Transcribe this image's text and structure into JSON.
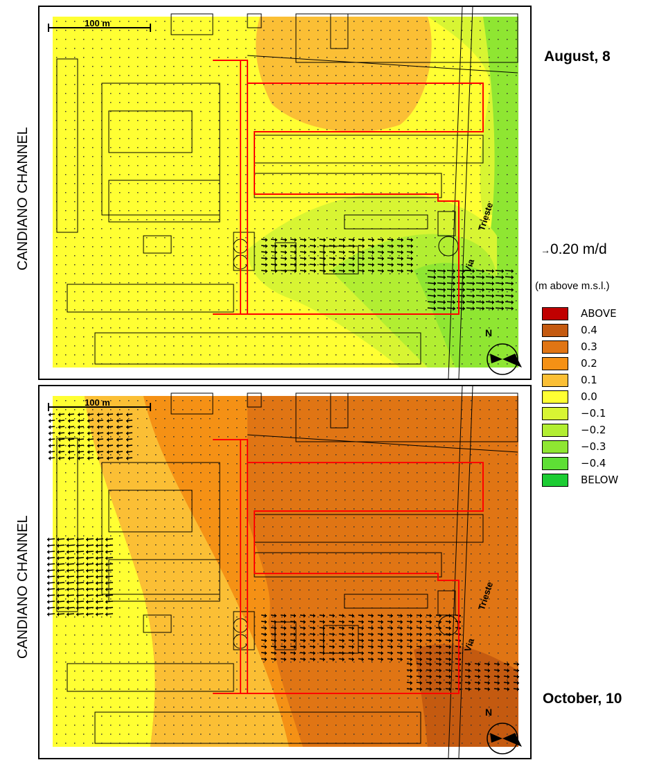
{
  "side_label": "CANDIANO CHANNEL",
  "street_name": "Via Trieste",
  "street_word_1": "Via",
  "street_word_2": "Trieste",
  "scale_bar": "100 m",
  "north": "N",
  "vector_scale": "0.20 m/d",
  "legend": {
    "title": "(m above m.s.l.)",
    "items": [
      {
        "label": "ABOVE",
        "color": "#c00000"
      },
      {
        "label": "0.4",
        "color": "#c45a10"
      },
      {
        "label": "0.3",
        "color": "#e07514"
      },
      {
        "label": "0.2",
        "color": "#f59115"
      },
      {
        "label": "0.1",
        "color": "#fbbf35"
      },
      {
        "label": "0.0",
        "color": "#ffff33"
      },
      {
        "label": "−0.1",
        "color": "#d8f533"
      },
      {
        "label": "−0.2",
        "color": "#b2ee32"
      },
      {
        "label": "−0.3",
        "color": "#8fe632"
      },
      {
        "label": "−0.4",
        "color": "#5edf35"
      },
      {
        "label": "BELOW",
        "color": "#1ccc33"
      }
    ]
  },
  "panels": [
    {
      "date": "August, 8"
    },
    {
      "date": "October, 10"
    }
  ]
}
